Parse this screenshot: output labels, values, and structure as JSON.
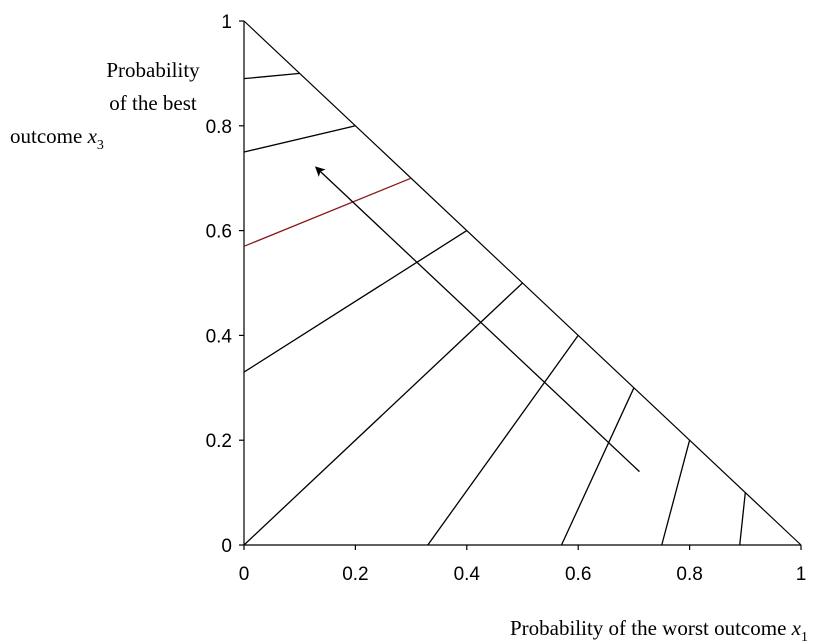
{
  "chart_data": {
    "type": "line",
    "title": "",
    "xlabel": "Probability of the worst outcome",
    "xlabel_var": "x",
    "xlabel_sub": "1",
    "ylabel_lines": [
      "Probability",
      "of the best",
      "outcome"
    ],
    "ylabel_var": "x",
    "ylabel_sub": "3",
    "xlim": [
      0,
      1
    ],
    "ylim": [
      0,
      1
    ],
    "x_ticks": [
      0,
      0.2,
      0.4,
      0.6,
      0.8,
      1
    ],
    "x_tick_labels": [
      "0",
      "0.2",
      "0.4",
      "0.6",
      "0.8",
      "1"
    ],
    "y_ticks": [
      0,
      0.2,
      0.4,
      0.6,
      0.8,
      1
    ],
    "y_tick_labels": [
      "0",
      "0.2",
      "0.4",
      "0.6",
      "0.8",
      "1"
    ],
    "grid": false,
    "legend": "none",
    "triangle": [
      [
        0,
        0
      ],
      [
        1,
        0
      ],
      [
        0,
        1
      ]
    ],
    "series": [
      {
        "points": [
          [
            0,
            0.89
          ],
          [
            0.1,
            0.9
          ]
        ],
        "color": "#000000"
      },
      {
        "points": [
          [
            0,
            0.75
          ],
          [
            0.2,
            0.8
          ]
        ],
        "color": "#000000"
      },
      {
        "points": [
          [
            0,
            0.57
          ],
          [
            0.3,
            0.7
          ]
        ],
        "color": "#8b1a1a"
      },
      {
        "points": [
          [
            0,
            0.33
          ],
          [
            0.4,
            0.6
          ]
        ],
        "color": "#000000"
      },
      {
        "points": [
          [
            0,
            0
          ],
          [
            0.5,
            0.5
          ]
        ],
        "color": "#000000"
      },
      {
        "points": [
          [
            0.33,
            0
          ],
          [
            0.6,
            0.4
          ]
        ],
        "color": "#000000"
      },
      {
        "points": [
          [
            0.57,
            0
          ],
          [
            0.7,
            0.3
          ]
        ],
        "color": "#000000"
      },
      {
        "points": [
          [
            0.75,
            0
          ],
          [
            0.8,
            0.2
          ]
        ],
        "color": "#000000"
      },
      {
        "points": [
          [
            0.89,
            0
          ],
          [
            0.9,
            0.1
          ]
        ],
        "color": "#000000"
      }
    ],
    "arrow": {
      "from": [
        0.71,
        0.14
      ],
      "to": [
        0.13,
        0.72
      ],
      "color": "#000000"
    }
  }
}
